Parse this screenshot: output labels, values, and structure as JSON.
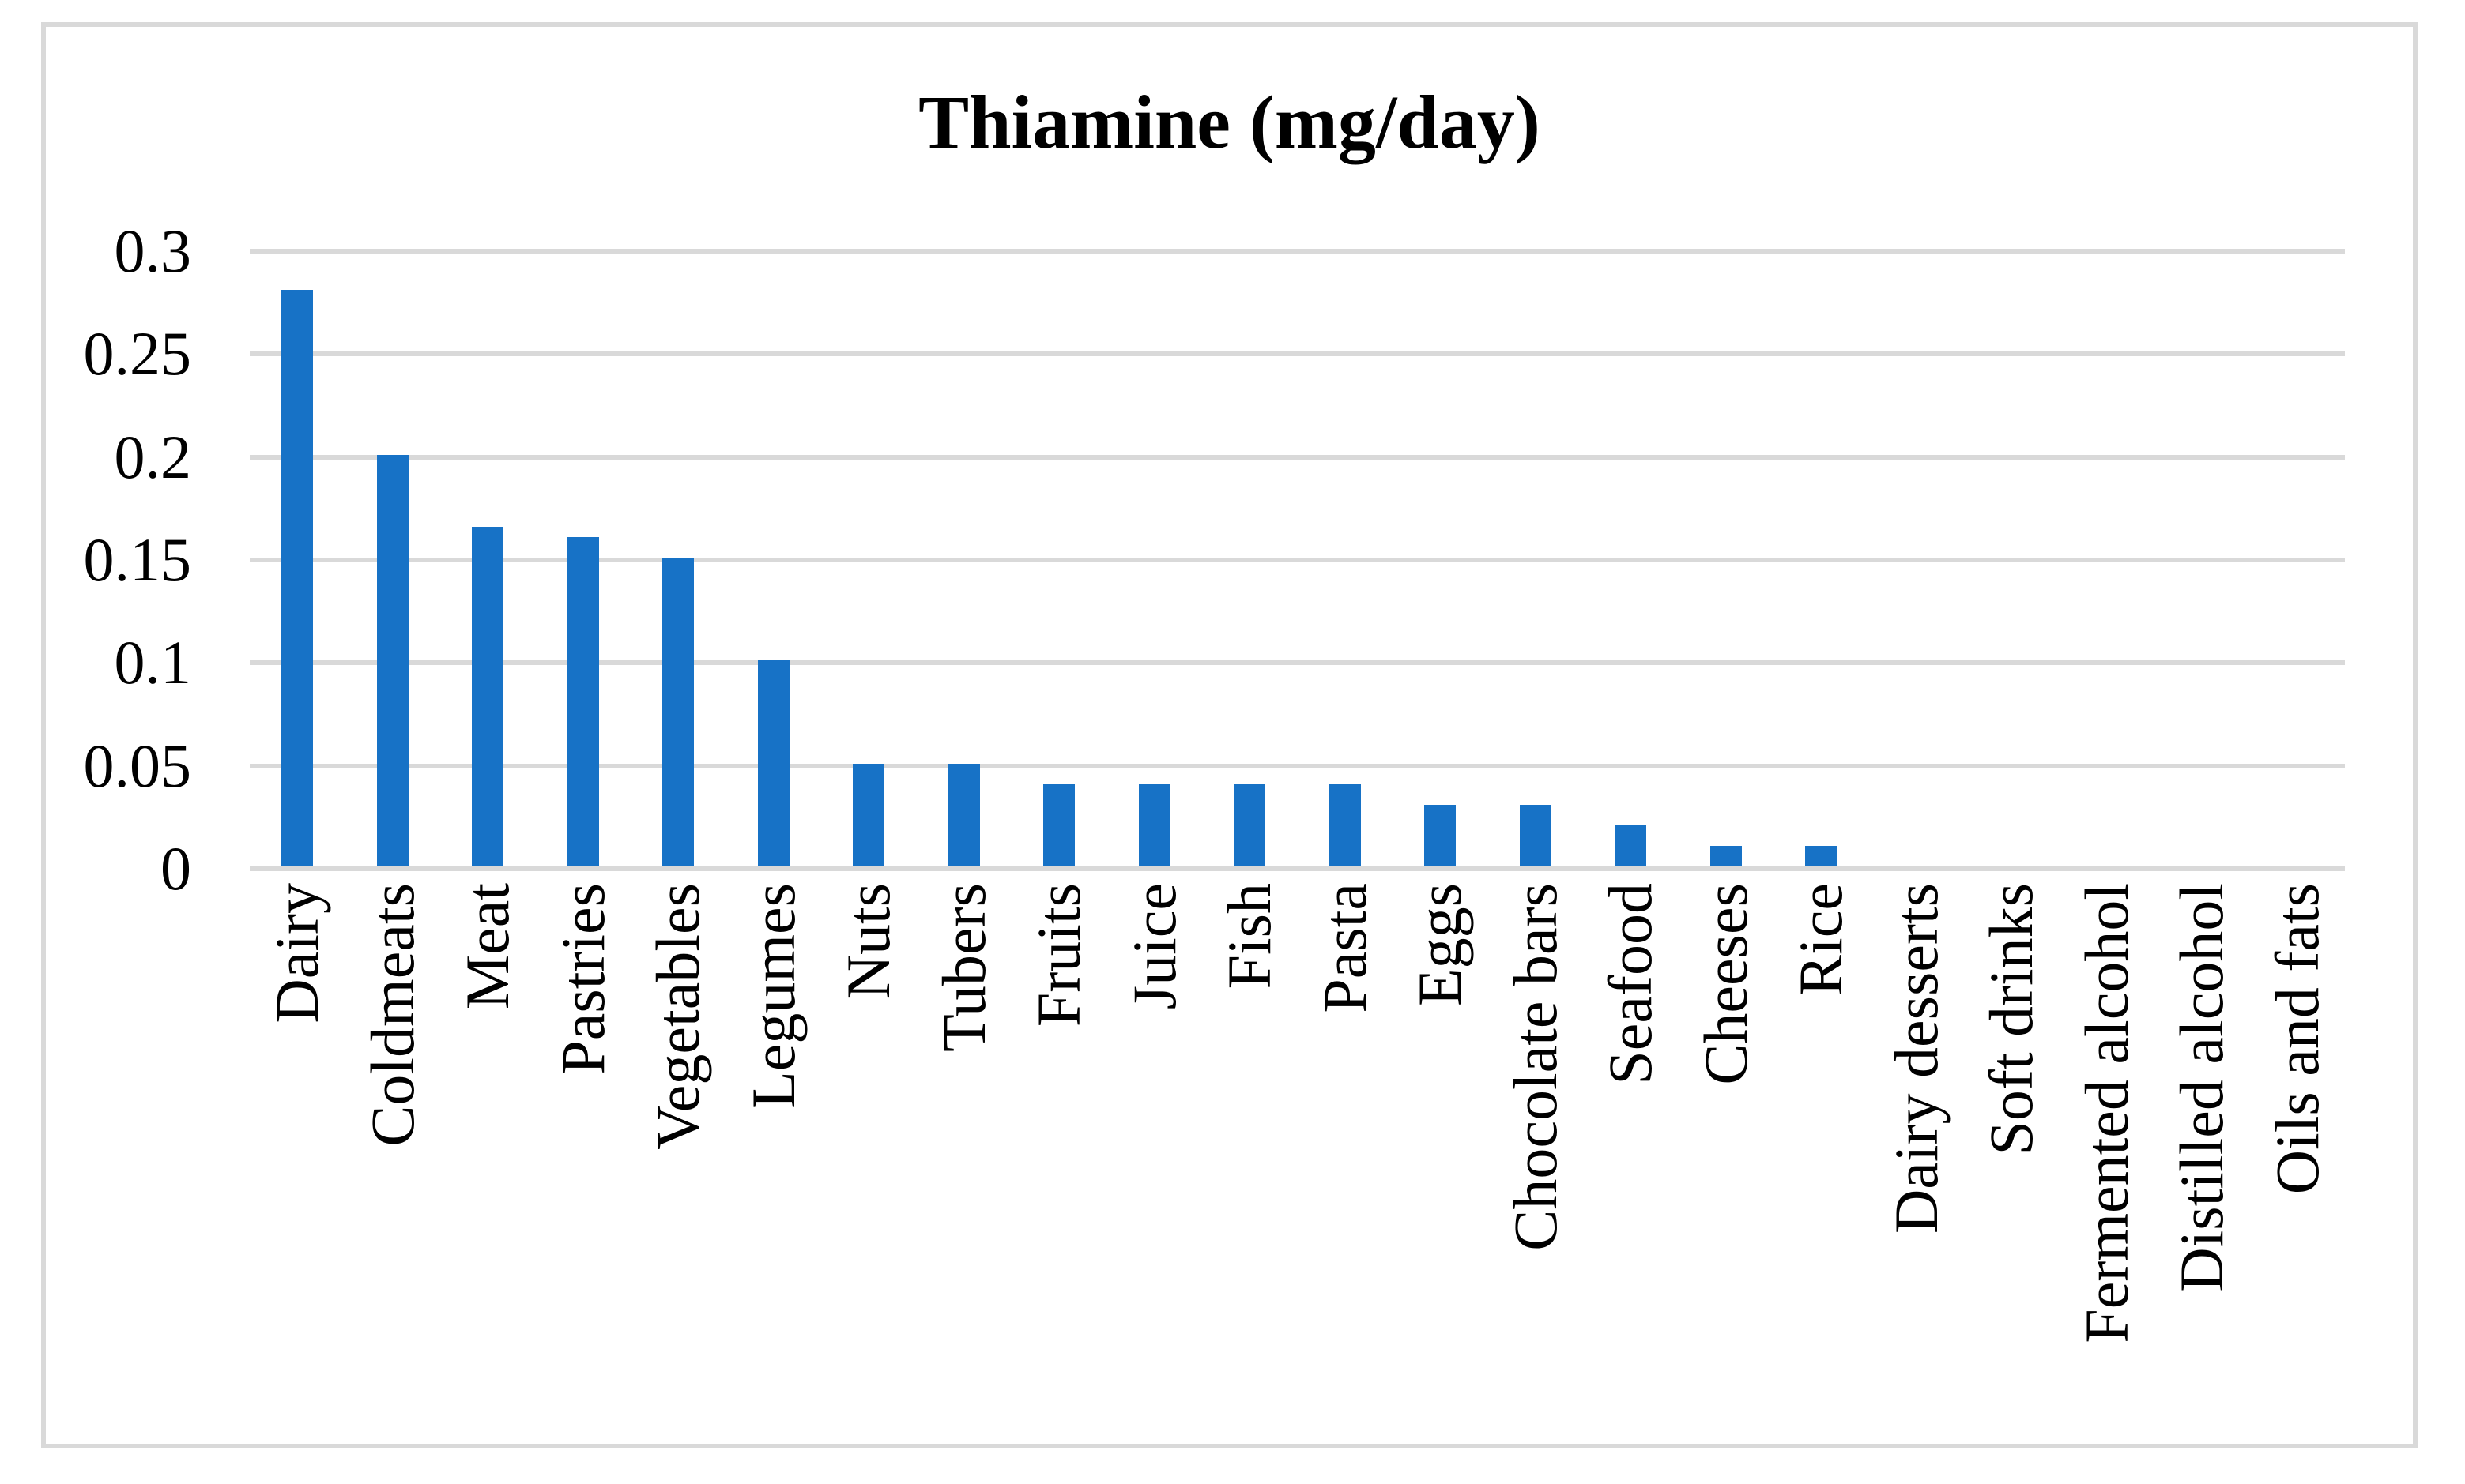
{
  "chart_data": {
    "type": "bar",
    "title": "Thiamine (mg/day)",
    "categories": [
      "Dairy",
      "Coldmeats",
      "Meat",
      "Pastries",
      "Vegetables",
      "Legumes",
      "Nuts",
      "Tubers",
      "Fruits",
      "Juice",
      "Fish",
      "Pasta",
      "Eggs",
      "Chocolate bars",
      "Seafood",
      "Cheeses",
      "Rice",
      "Dairy desserts",
      "Soft drinks",
      "Fermented alcohol",
      "Distilled alcohol",
      "Oils and fats"
    ],
    "values": [
      0.28,
      0.2,
      0.165,
      0.16,
      0.15,
      0.1,
      0.05,
      0.05,
      0.04,
      0.04,
      0.04,
      0.04,
      0.03,
      0.03,
      0.02,
      0.01,
      0.01,
      0,
      0,
      0,
      0,
      0
    ],
    "xlabel": "",
    "ylabel": "",
    "ylim": [
      0,
      0.3
    ],
    "yticks": [
      0.3,
      0.25,
      0.2,
      0.15,
      0.1,
      0.05,
      0
    ],
    "ytick_labels": [
      "0.3",
      "0.25",
      "0.2",
      "0.15",
      "0.1",
      "0.05",
      "0"
    ],
    "grid": true,
    "legend": false,
    "bar_color": "#1772C6",
    "gridline_color": "#D9D9D9",
    "frame_color": "#D9D9D9"
  }
}
